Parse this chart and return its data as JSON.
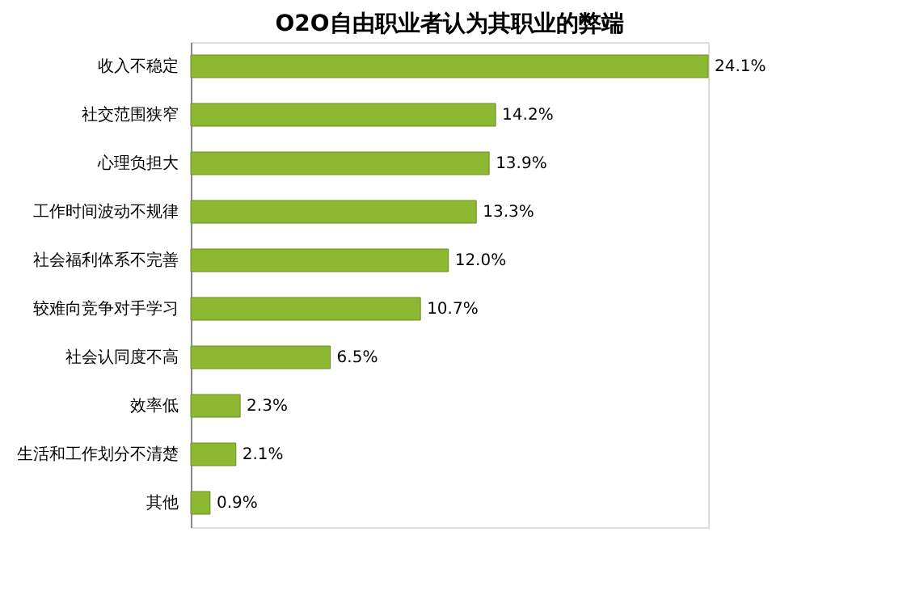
{
  "chart_data": {
    "type": "bar",
    "orientation": "horizontal",
    "title": "O2O自由职业者认为其职业的弊端",
    "categories": [
      "收入不稳定",
      "社交范围狭窄",
      "心理负担大",
      "工作时间波动不规律",
      "社会福利体系不完善",
      "较难向竞争对手学习",
      "社会认同度不高",
      "效率低",
      "生活和工作划分不清楚",
      "其他"
    ],
    "values": [
      24.1,
      14.2,
      13.9,
      13.3,
      12.0,
      10.7,
      6.5,
      2.3,
      2.1,
      0.9
    ],
    "value_labels": [
      "24.1%",
      "14.2%",
      "13.9%",
      "13.3%",
      "12.0%",
      "10.7%",
      "6.5%",
      "2.3%",
      "2.1%",
      "0.9%"
    ],
    "color": "#8cb832",
    "tick_labels": "y"
  }
}
